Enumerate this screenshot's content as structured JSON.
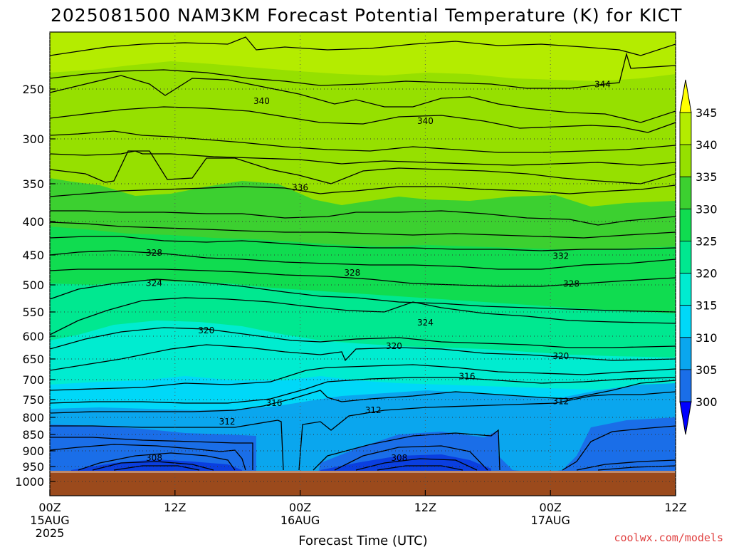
{
  "title": "2025081500 NAM3KM Forecast Potential Temperature (K) for KICT",
  "xlabel": "Forecast Time (UTC)",
  "credit": "coolwx.com/models",
  "colors": {
    "ground": "#9b4a1c",
    "bands": [
      "#0000ff",
      "#0a3fe0",
      "#1a6ee8",
      "#0aa6ee",
      "#00d8f8",
      "#00ecd0",
      "#00e890",
      "#10dc50",
      "#3cd030",
      "#96e000",
      "#b4ec00",
      "#ffff00"
    ]
  },
  "chart_data": {
    "type": "heatmap",
    "title": "2025081500 NAM3KM Forecast Potential Temperature (K) for KICT",
    "xlabel": "Forecast Time (UTC)",
    "x_ticks": [
      {
        "hour": 0,
        "label": [
          "00Z",
          "15AUG",
          "2025"
        ]
      },
      {
        "hour": 12,
        "label": [
          "12Z"
        ]
      },
      {
        "hour": 24,
        "label": [
          "00Z",
          "16AUG"
        ]
      },
      {
        "hour": 36,
        "label": [
          "12Z"
        ]
      },
      {
        "hour": 48,
        "label": [
          "00Z",
          "17AUG"
        ]
      },
      {
        "hour": 60,
        "label": [
          "12Z"
        ]
      }
    ],
    "xlim": [
      0,
      60
    ],
    "y_ticks": [
      "250",
      "300",
      "350",
      "400",
      "450",
      "500",
      "550",
      "600",
      "650",
      "700",
      "750",
      "800",
      "850",
      "900",
      "950",
      "1000"
    ],
    "ylim": [
      200,
      1050
    ],
    "colorbar": {
      "ticks": [
        "300",
        "305",
        "310",
        "315",
        "320",
        "325",
        "330",
        "335",
        "340",
        "345"
      ],
      "range": [
        295,
        350
      ]
    },
    "contour_labels": [
      {
        "text": "340",
        "hour": 20.3,
        "p": 262
      },
      {
        "text": "340",
        "hour": 36.0,
        "p": 282
      },
      {
        "text": "344",
        "hour": 53.0,
        "p": 246
      },
      {
        "text": "336",
        "hour": 24.0,
        "p": 355
      },
      {
        "text": "332",
        "hour": 49.0,
        "p": 452
      },
      {
        "text": "328",
        "hour": 10.0,
        "p": 447
      },
      {
        "text": "328",
        "hour": 29.0,
        "p": 480
      },
      {
        "text": "328",
        "hour": 50.0,
        "p": 498
      },
      {
        "text": "324",
        "hour": 10.0,
        "p": 497
      },
      {
        "text": "324",
        "hour": 36.0,
        "p": 572
      },
      {
        "text": "320",
        "hour": 15.0,
        "p": 588
      },
      {
        "text": "320",
        "hour": 33.0,
        "p": 622
      },
      {
        "text": "320",
        "hour": 49.0,
        "p": 644
      },
      {
        "text": "316",
        "hour": 40.0,
        "p": 692
      },
      {
        "text": "316",
        "hour": 21.5,
        "p": 760
      },
      {
        "text": "312",
        "hour": 31.0,
        "p": 780
      },
      {
        "text": "312",
        "hour": 49.0,
        "p": 755
      },
      {
        "text": "312",
        "hour": 17.0,
        "p": 812
      },
      {
        "text": "308",
        "hour": 10.0,
        "p": 923
      },
      {
        "text": "308",
        "hour": 33.5,
        "p": 923
      }
    ]
  }
}
